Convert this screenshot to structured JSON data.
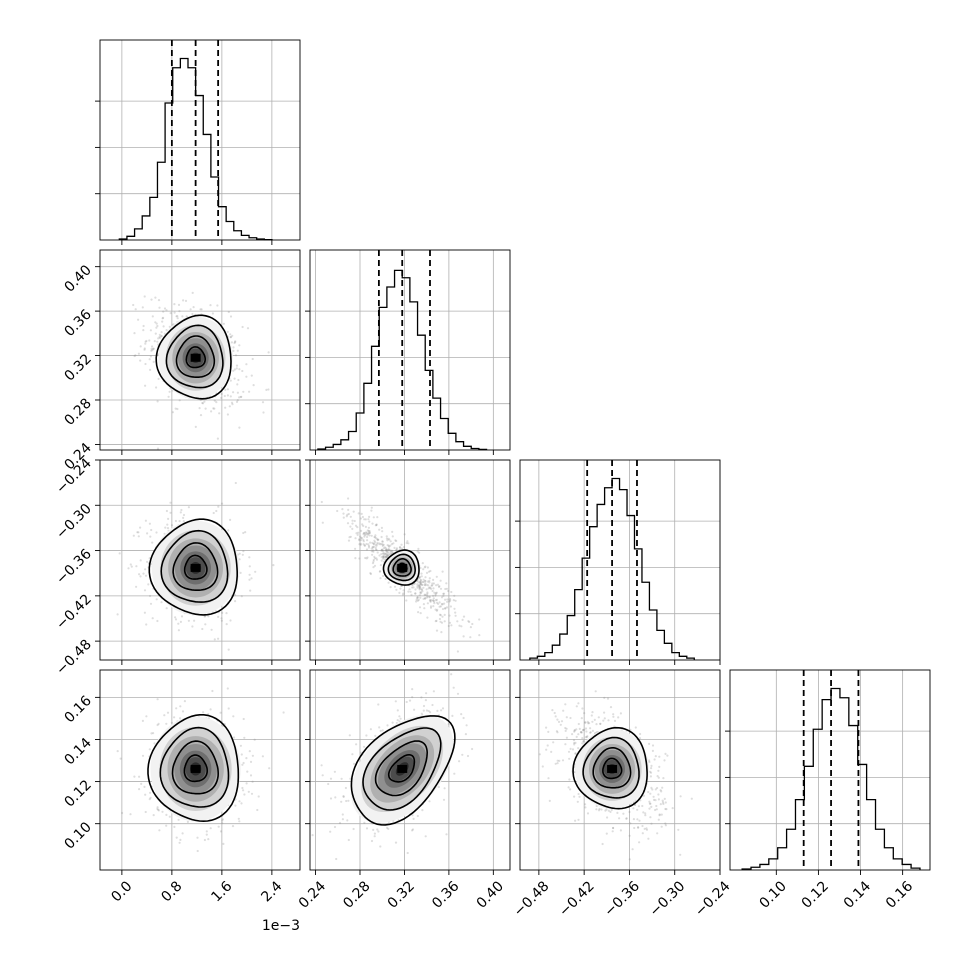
{
  "chart_data": {
    "type": "corner",
    "title": "",
    "n_params": 4,
    "x_offset_label": "1e−3",
    "parameters": [
      {
        "name": "",
        "range": [
          -0.00035,
          0.00285
        ],
        "ticks": [
          0.0,
          0.0008,
          0.0016,
          0.0024
        ],
        "tick_labels": [
          "0.0",
          "0.8",
          "1.6",
          "2.4"
        ],
        "quantiles": [
          0.0008,
          0.00118,
          0.00154
        ],
        "median": 0.00118,
        "sigma": 0.00037,
        "histogram": [
          0.005,
          0.02,
          0.06,
          0.13,
          0.23,
          0.42,
          0.74,
          0.93,
          0.98,
          0.93,
          0.78,
          0.57,
          0.34,
          0.18,
          0.1,
          0.05,
          0.025,
          0.012,
          0.005,
          0.002
        ]
      },
      {
        "name": "",
        "range": [
          0.235,
          0.415
        ],
        "ticks": [
          0.24,
          0.28,
          0.32,
          0.36,
          0.4
        ],
        "tick_labels": [
          "0.24",
          "0.28",
          "0.32",
          "0.36",
          "0.40"
        ],
        "quantiles": [
          0.297,
          0.318,
          0.343
        ],
        "median": 0.318,
        "sigma": 0.023,
        "histogram": [
          0.005,
          0.015,
          0.03,
          0.055,
          0.1,
          0.2,
          0.36,
          0.56,
          0.77,
          0.88,
          0.97,
          0.93,
          0.8,
          0.62,
          0.43,
          0.28,
          0.17,
          0.09,
          0.045,
          0.02,
          0.008,
          0.003
        ]
      },
      {
        "name": "",
        "range": [
          -0.505,
          -0.24
        ],
        "ticks": [
          -0.48,
          -0.42,
          -0.36,
          -0.3,
          -0.24
        ],
        "tick_labels": [
          "−0.48",
          "−0.42",
          "−0.36",
          "−0.30",
          "−0.24"
        ],
        "quantiles": [
          -0.416,
          -0.383,
          -0.35
        ],
        "median": -0.383,
        "sigma": 0.033,
        "histogram": [
          0.01,
          0.02,
          0.04,
          0.08,
          0.14,
          0.24,
          0.38,
          0.55,
          0.72,
          0.84,
          0.93,
          0.98,
          0.92,
          0.78,
          0.6,
          0.42,
          0.27,
          0.16,
          0.09,
          0.04,
          0.02,
          0.01
        ]
      },
      {
        "name": "",
        "range": [
          0.078,
          0.173
        ],
        "ticks": [
          0.1,
          0.12,
          0.14,
          0.16
        ],
        "tick_labels": [
          "0.10",
          "0.12",
          "0.14",
          "0.16"
        ],
        "quantiles": [
          0.113,
          0.126,
          0.139
        ],
        "median": 0.126,
        "sigma": 0.0128,
        "histogram": [
          0.005,
          0.015,
          0.03,
          0.06,
          0.12,
          0.22,
          0.38,
          0.56,
          0.76,
          0.92,
          0.98,
          0.93,
          0.78,
          0.57,
          0.38,
          0.22,
          0.12,
          0.06,
          0.03,
          0.01
        ]
      }
    ],
    "correlations": {
      "1-0": -0.35,
      "2-0": -0.1,
      "2-1": -0.88,
      "3-0": -0.05,
      "3-1": 0.45,
      "3-2": -0.45
    },
    "contour_levels_sigma": [
      0.5,
      1.0,
      1.5,
      2.0
    ],
    "grid": true,
    "colors": {
      "line": "#000000",
      "grid": "#b0b0b0",
      "density_max": "#000000",
      "density_min": "#ffffff",
      "samples": "#888888"
    }
  }
}
